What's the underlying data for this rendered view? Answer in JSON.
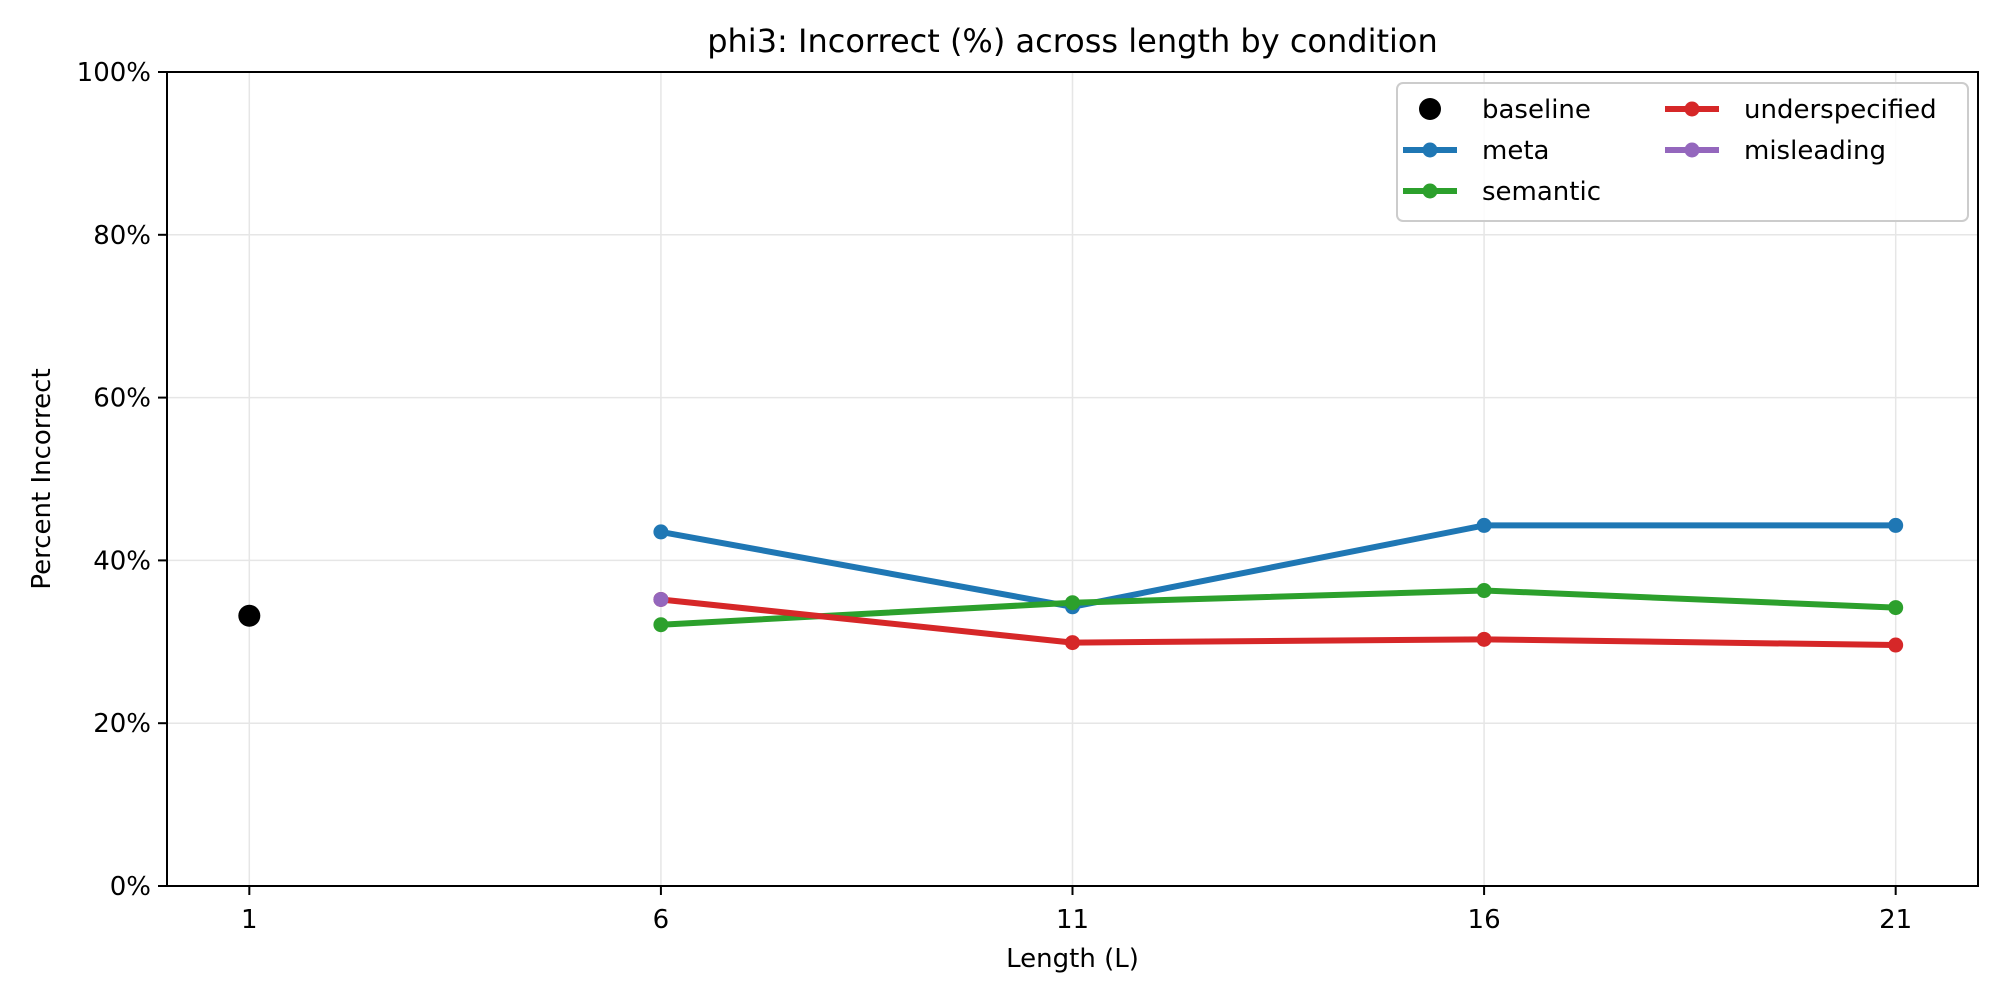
{
  "chart_data": {
    "type": "line",
    "title": "phi3: Incorrect (%) across length by condition",
    "xlabel": "Length (L)",
    "ylabel": "Percent Incorrect",
    "x_ticks": [
      1,
      6,
      11,
      16,
      21
    ],
    "x_tick_labels": [
      "1",
      "6",
      "11",
      "16",
      "21"
    ],
    "xlim": [
      0,
      22.0
    ],
    "ylim": [
      0,
      100
    ],
    "y_ticks": [
      0,
      20,
      40,
      60,
      80,
      100
    ],
    "y_tick_labels": [
      "0%",
      "20%",
      "40%",
      "60%",
      "80%",
      "100%"
    ],
    "grid": true,
    "legend": {
      "placement": "top-right",
      "columns": 2
    },
    "series": [
      {
        "name": "baseline",
        "kind": "scatter",
        "color": "#000000",
        "x": [
          1
        ],
        "y": [
          33.2
        ]
      },
      {
        "name": "meta",
        "kind": "line",
        "color": "#1f77b4",
        "x": [
          6,
          11,
          16,
          21
        ],
        "y": [
          43.5,
          34.3,
          44.3,
          44.3
        ]
      },
      {
        "name": "semantic",
        "kind": "line",
        "color": "#2ca02c",
        "x": [
          6,
          11,
          16,
          21
        ],
        "y": [
          32.1,
          34.8,
          36.3,
          34.2
        ]
      },
      {
        "name": "underspecified",
        "kind": "line",
        "color": "#d62728",
        "x": [
          6,
          11,
          16,
          21
        ],
        "y": [
          35.2,
          29.9,
          30.3,
          29.6
        ]
      },
      {
        "name": "misleading",
        "kind": "line",
        "color": "#9467bd",
        "x": [
          6
        ],
        "y": [
          35.2
        ]
      }
    ]
  }
}
